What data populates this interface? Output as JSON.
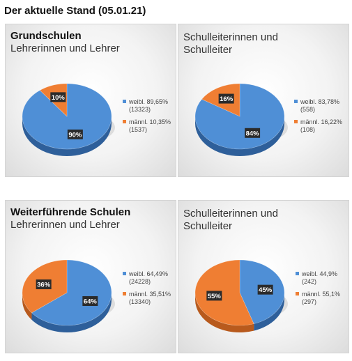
{
  "title": "Der aktuelle Stand (05.01.21)",
  "colors": {
    "weibl": "#4f8fd6",
    "maennl": "#ef7e33",
    "weibl_dark": "#2e5f9a",
    "maennl_dark": "#b85a1d"
  },
  "panels": [
    {
      "heading": "Grundschulen",
      "subheading": "Lehrerinnen und Lehrer"
    },
    {
      "heading": "",
      "subheading_lines": [
        "Schulleiterinnen und",
        "Schulleiter"
      ]
    },
    {
      "heading": "Weiterführende Schulen",
      "subheading": "Lehrerinnen und Lehrer"
    },
    {
      "heading": "",
      "subheading_lines": [
        "Schulleiterinnen und",
        "Schulleiter"
      ]
    }
  ],
  "chart_data": [
    {
      "type": "pie",
      "slices": [
        {
          "name": "weibl.",
          "percent": 89.65,
          "count": 13323,
          "label": "90%",
          "legend1": "weibl. 89,65%",
          "legend2": "(13323)"
        },
        {
          "name": "männl.",
          "percent": 10.35,
          "count": 1537,
          "label": "10%",
          "legend1": "männl. 10,35%",
          "legend2": "(1537)"
        }
      ]
    },
    {
      "type": "pie",
      "slices": [
        {
          "name": "weibl.",
          "percent": 83.78,
          "count": 558,
          "label": "84%",
          "legend1": "weibl. 83,78%",
          "legend2": "(558)"
        },
        {
          "name": "männl.",
          "percent": 16.22,
          "count": 108,
          "label": "16%",
          "legend1": "männl. 16,22%",
          "legend2": "(108)"
        }
      ]
    },
    {
      "type": "pie",
      "slices": [
        {
          "name": "weibl.",
          "percent": 64.49,
          "count": 24228,
          "label": "64%",
          "legend1": "weibl. 64,49%",
          "legend2": "(24228)"
        },
        {
          "name": "männl.",
          "percent": 35.51,
          "count": 13340,
          "label": "36%",
          "legend1": "männl. 35,51%",
          "legend2": "(13340)"
        }
      ]
    },
    {
      "type": "pie",
      "slices": [
        {
          "name": "weibl.",
          "percent": 44.9,
          "count": 242,
          "label": "45%",
          "legend1": "weibl. 44,9%",
          "legend2": "(242)"
        },
        {
          "name": "männl.",
          "percent": 55.1,
          "count": 297,
          "label": "55%",
          "legend1": "männl. 55,1%",
          "legend2": "(297)"
        }
      ]
    }
  ]
}
